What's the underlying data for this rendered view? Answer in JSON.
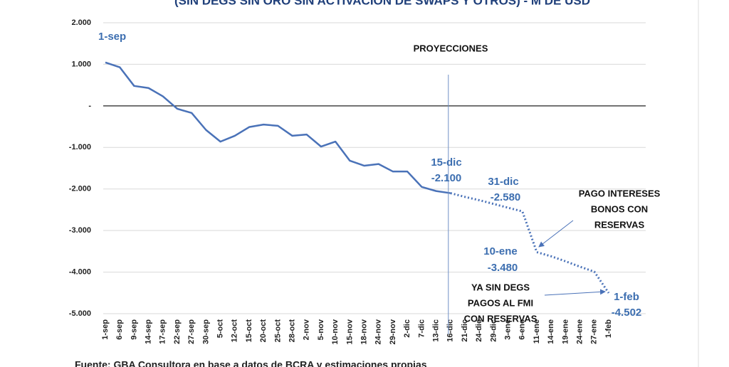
{
  "chart_data": {
    "type": "line",
    "title": "(SIN DEGS SIN ORO SIN ACTIVACIÓN DE SWAPS Y OTROS) - M DE USD",
    "source": "Fuente: GBA Consultora en base a datos de BCRA y estimaciones propias",
    "categories": [
      "1-sep",
      "6-sep",
      "9-sep",
      "14-sep",
      "17-sep",
      "22-sep",
      "27-sep",
      "30-sep",
      "5-oct",
      "12-oct",
      "15-oct",
      "20-oct",
      "25-oct",
      "28-oct",
      "2-nov",
      "5-nov",
      "10-nov",
      "15-nov",
      "18-nov",
      "24-nov",
      "29-nov",
      "2-dic",
      "7-dic",
      "13-dic",
      "16-dic",
      "21-dic",
      "24-dic",
      "29-dic",
      "3-ene",
      "6-ene",
      "11-ene",
      "14-ene",
      "19-ene",
      "24-ene",
      "27-ene",
      "1-feb"
    ],
    "series": [
      {
        "color": "#4a72b8",
        "style": "solid",
        "values": [
          1045,
          930,
          480,
          430,
          230,
          -70,
          -170,
          -580,
          -860,
          -720,
          -510,
          -450,
          -480,
          -720,
          -690,
          -980,
          -860,
          -1320,
          -1440,
          -1400,
          -1580,
          -1580,
          -1950,
          -2050,
          -2100,
          null,
          null,
          null,
          null,
          null,
          null,
          null,
          null,
          null,
          null,
          null
        ]
      },
      {
        "color": "#4a72b8",
        "style": "dotted",
        "values": [
          null,
          null,
          null,
          null,
          null,
          null,
          null,
          null,
          null,
          null,
          null,
          null,
          null,
          null,
          null,
          null,
          null,
          null,
          null,
          null,
          null,
          null,
          null,
          null,
          -2100,
          -2190,
          -2270,
          -2360,
          -2450,
          -2540,
          -3520,
          -3620,
          -3740,
          -3870,
          -3990,
          -4502
        ]
      }
    ],
    "ylim": [
      -5000,
      2000
    ],
    "yticks": [
      {
        "value": 2000,
        "label": "2.000"
      },
      {
        "value": 1000,
        "label": "1.000"
      },
      {
        "value": 0,
        "label": "-"
      },
      {
        "value": -1000,
        "label": "-1.000"
      },
      {
        "value": -2000,
        "label": "-2.000"
      },
      {
        "value": -3000,
        "label": "-3.000"
      },
      {
        "value": -4000,
        "label": "-4.000"
      },
      {
        "value": -5000,
        "label": "-5.000"
      }
    ],
    "grid": true,
    "projection_start": "16-dic",
    "annotations": [
      "1-sep",
      "PROYECCIONES",
      "15-dic",
      "-2.100",
      "31-dic",
      "-2.580",
      "PAGO INTERESES",
      "BONOS CON",
      "RESERVAS",
      "10-ene",
      "-3.480",
      "YA SIN DEGS",
      "PAGOS AL FMI",
      "CON RESERVAS",
      "1-feb",
      "-4.502"
    ]
  }
}
